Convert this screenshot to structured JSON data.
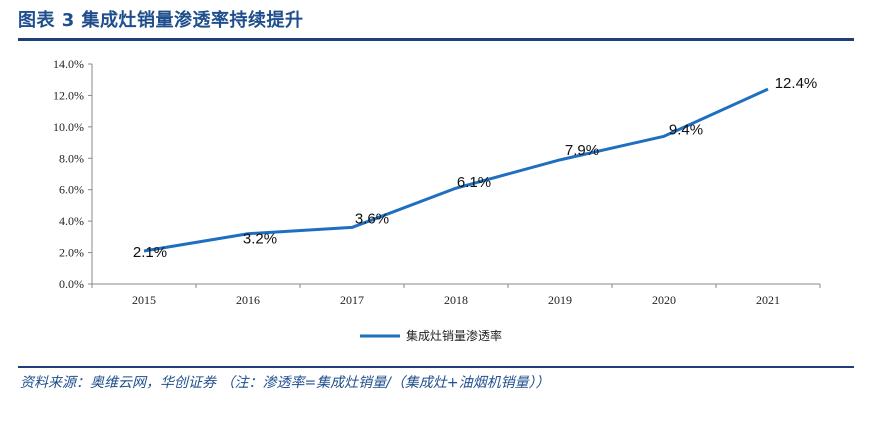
{
  "header": {
    "title": "图表 3   集成灶销量渗透率持续提升"
  },
  "footer": {
    "source": "资料来源：奥维云网，华创证券  （注：渗透率=集成灶销量/（集成灶+油烟机销量））"
  },
  "colors": {
    "title": "#1f4e8c",
    "rule": "#1f3f7a",
    "series": "#1f6fc0"
  },
  "chart_data": {
    "type": "line",
    "x": [
      "2015",
      "2016",
      "2017",
      "2018",
      "2019",
      "2020",
      "2021"
    ],
    "series": [
      {
        "name": "集成灶销量渗透率",
        "values": [
          2.1,
          3.2,
          3.6,
          6.1,
          7.9,
          9.4,
          12.4
        ],
        "labels": [
          "2.1%",
          "3.2%",
          "3.6%",
          "6.1%",
          "7.9%",
          "9.4%",
          "12.4%"
        ]
      }
    ],
    "ylim": [
      0,
      14
    ],
    "yticks": [
      "0.0%",
      "2.0%",
      "4.0%",
      "6.0%",
      "8.0%",
      "10.0%",
      "12.0%",
      "14.0%"
    ],
    "grid": false,
    "legend_position": "bottom"
  }
}
